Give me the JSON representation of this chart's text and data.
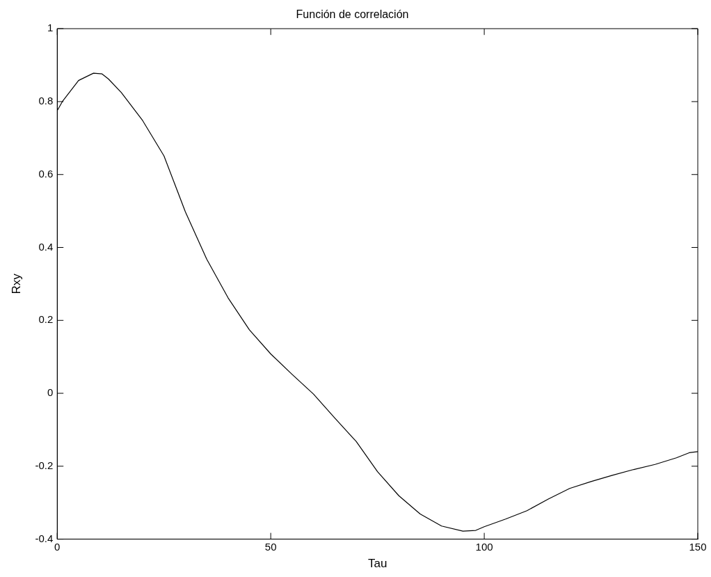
{
  "chart_data": {
    "type": "line",
    "title": "Función de correlación",
    "xlabel": "Tau",
    "ylabel": "Rxy",
    "x": [
      0,
      1.2,
      5,
      8.5,
      10.5,
      12,
      15,
      20,
      25,
      30,
      35,
      40,
      45,
      50,
      55,
      60,
      65,
      70,
      75,
      80,
      85,
      90,
      95,
      98,
      100,
      105,
      110,
      115,
      120,
      125,
      130,
      135,
      140,
      145,
      148,
      150
    ],
    "series": [
      {
        "color": "#000000",
        "values": [
          0.775,
          0.8,
          0.858,
          0.878,
          0.876,
          0.862,
          0.825,
          0.748,
          0.651,
          0.498,
          0.368,
          0.262,
          0.174,
          0.108,
          0.052,
          -0.002,
          -0.068,
          -0.132,
          -0.215,
          -0.281,
          -0.331,
          -0.364,
          -0.378,
          -0.376,
          -0.366,
          -0.345,
          -0.322,
          -0.29,
          -0.261,
          -0.242,
          -0.225,
          -0.209,
          -0.195,
          -0.177,
          -0.163,
          -0.16
        ]
      }
    ],
    "xlim": [
      0,
      150
    ],
    "xticks": [
      0,
      50,
      100,
      150
    ],
    "ylim": [
      -0.4,
      1
    ],
    "yticks": [
      -0.4,
      -0.2,
      0,
      0.2,
      0.4,
      0.6,
      0.8,
      1
    ],
    "grid": false,
    "legend": false,
    "marker": "none",
    "line_style": "solid"
  }
}
